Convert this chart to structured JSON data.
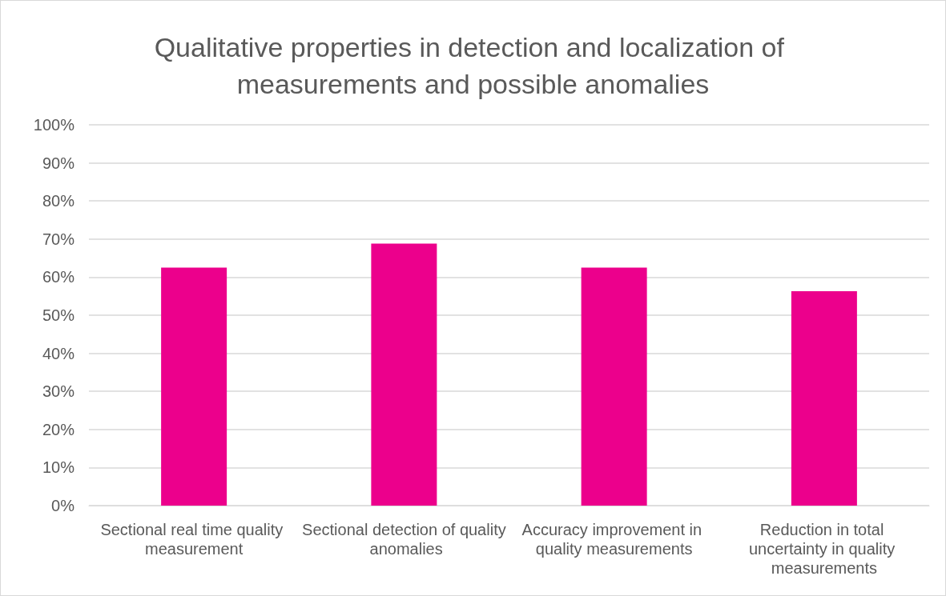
{
  "chart_data": {
    "type": "bar",
    "title": "Qualitative properties in detection and localization of measurements and possible anomalies",
    "categories": [
      "Sectional real time quality measurement",
      "Sectional detection of quality anomalies",
      "Accuracy improvement in quality measurements",
      "Reduction in total uncertainty in quality measurements"
    ],
    "values": [
      62.5,
      68.8,
      62.5,
      56.3
    ],
    "color": "#ec008c",
    "ylim": [
      0,
      100
    ],
    "yticks": [
      {
        "value": 0,
        "label": "0%"
      },
      {
        "value": 10,
        "label": "10%"
      },
      {
        "value": 20,
        "label": "20%"
      },
      {
        "value": 30,
        "label": "30%"
      },
      {
        "value": 40,
        "label": "40%"
      },
      {
        "value": 50,
        "label": "50%"
      },
      {
        "value": 60,
        "label": "60%"
      },
      {
        "value": 70,
        "label": "70%"
      },
      {
        "value": 80,
        "label": "80%"
      },
      {
        "value": 90,
        "label": "90%"
      },
      {
        "value": 100,
        "label": "100%"
      }
    ],
    "grid": "y"
  }
}
